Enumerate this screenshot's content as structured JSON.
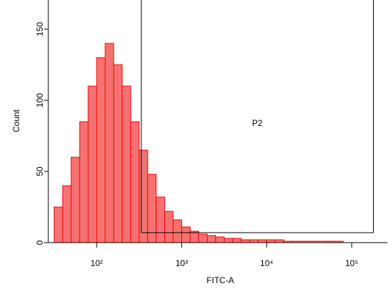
{
  "chart_data": {
    "type": "histogram",
    "xlabel": "FITC-A",
    "ylabel": "Count",
    "log_x": true,
    "bins": [
      31.6,
      39.8,
      50.1,
      63.1,
      79.4,
      100,
      125.9,
      158.5,
      199.5,
      251.2,
      316.2,
      398.1,
      501.2,
      631,
      794.3,
      1000,
      1259,
      1585,
      1995,
      2512,
      3162,
      3981,
      5012,
      6310,
      7943,
      10000,
      12589,
      15849,
      19953,
      25119,
      31623,
      39811,
      50119,
      63096,
      79433,
      100000,
      125893,
      158489,
      199526,
      251189
    ],
    "values": [
      25,
      40,
      60,
      85,
      110,
      130,
      140,
      125,
      110,
      85,
      65,
      48,
      32,
      22,
      16,
      11,
      8,
      6,
      5,
      4,
      3,
      3,
      2,
      2,
      2,
      2,
      2,
      1,
      1,
      1,
      1,
      1,
      1,
      1,
      0,
      0,
      0,
      0,
      0
    ],
    "color": "#f47272",
    "edge_color": "#ff0000",
    "xlim": [
      27,
      262144
    ],
    "ylim": [
      0,
      170
    ],
    "xticks": [
      {
        "value": 100,
        "label": "10²"
      },
      {
        "value": 1000,
        "label": "10³"
      },
      {
        "value": 10000,
        "label": "10⁴"
      },
      {
        "value": 100000,
        "label": "10⁵"
      }
    ],
    "yticks": [
      0,
      50,
      100,
      150
    ],
    "gate": {
      "name": "P2",
      "range": [
        335,
        180000
      ],
      "level": 7
    }
  }
}
